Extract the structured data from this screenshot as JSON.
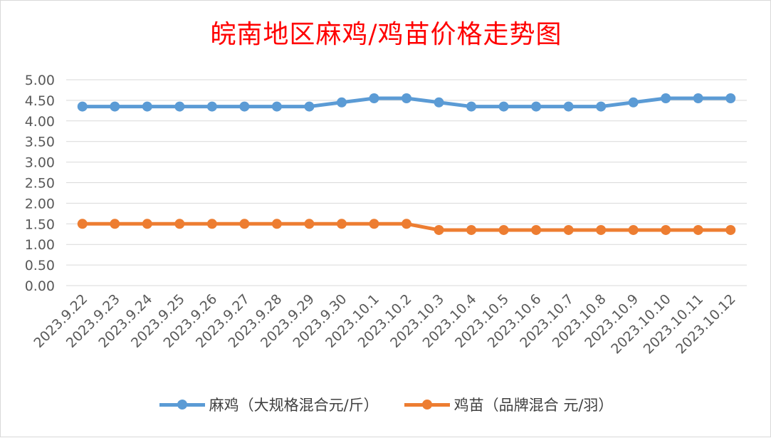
{
  "title": "皖南地区麻鸡/鸡苗价格走势图",
  "colors": {
    "title": "#ff0000",
    "grid": "#d9d9d9",
    "axis_text": "#595959"
  },
  "chart_data": {
    "type": "line",
    "title": "皖南地区麻鸡/鸡苗价格走势图",
    "categories": [
      "2023.9.22",
      "2023.9.23",
      "2023.9.24",
      "2023.9.25",
      "2023.9.26",
      "2023.9.27",
      "2023.9.28",
      "2023.9.29",
      "2023.9.30",
      "2023.10.1",
      "2023.10.2",
      "2023.10.3",
      "2023.10.4",
      "2023.10.5",
      "2023.10.6",
      "2023.10.7",
      "2023.10.8",
      "2023.10.9",
      "2023.10.10",
      "2023.10.11",
      "2023.10.12"
    ],
    "series": [
      {
        "name": "麻鸡（大规格混合元/斤）",
        "color": "#5b9bd5",
        "values": [
          4.35,
          4.35,
          4.35,
          4.35,
          4.35,
          4.35,
          4.35,
          4.35,
          4.45,
          4.55,
          4.55,
          4.45,
          4.35,
          4.35,
          4.35,
          4.35,
          4.35,
          4.45,
          4.55,
          4.55,
          4.55
        ]
      },
      {
        "name": "鸡苗（品牌混合 元/羽）",
        "color": "#ed7d31",
        "values": [
          1.5,
          1.5,
          1.5,
          1.5,
          1.5,
          1.5,
          1.5,
          1.5,
          1.5,
          1.5,
          1.5,
          1.35,
          1.35,
          1.35,
          1.35,
          1.35,
          1.35,
          1.35,
          1.35,
          1.35,
          1.35
        ]
      }
    ],
    "yticks": [
      "5.00",
      "4.50",
      "4.00",
      "3.50",
      "3.00",
      "2.50",
      "2.00",
      "1.50",
      "1.00",
      "0.50",
      "0.00"
    ],
    "ylim": [
      0,
      5
    ],
    "grid": true,
    "legend_position": "bottom"
  }
}
